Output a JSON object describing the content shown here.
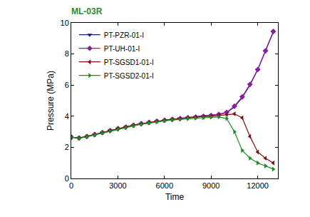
{
  "chart_data": {
    "type": "line",
    "title": "ML-03R",
    "x_label": "Time",
    "y_label": "Pressure (MPa)",
    "x": [
      0,
      500,
      1000,
      1500,
      2000,
      2500,
      3000,
      3500,
      4000,
      4500,
      5000,
      5500,
      6000,
      6500,
      7000,
      7500,
      8000,
      8500,
      9000,
      9500,
      10000,
      10500,
      11000,
      11500,
      12000,
      12500,
      13000
    ],
    "series": [
      {
        "name": "PT-PZR-01-I",
        "color": "#1c1c78",
        "marker": "triangle-down",
        "line_style": "solid",
        "values": [
          2.65,
          2.6,
          2.7,
          2.82,
          2.95,
          3.08,
          3.2,
          3.3,
          3.42,
          3.52,
          3.6,
          3.68,
          3.74,
          3.8,
          3.85,
          3.9,
          3.95,
          4.0,
          4.05,
          4.12,
          4.22,
          4.6,
          5.2,
          6.0,
          7.0,
          8.2,
          9.4
        ]
      },
      {
        "name": "PT-UH-01-I",
        "color": "#8e1aa6",
        "marker": "diamond",
        "line_style": "solid",
        "values": [
          2.65,
          2.6,
          2.7,
          2.82,
          2.95,
          3.08,
          3.2,
          3.3,
          3.42,
          3.52,
          3.6,
          3.68,
          3.74,
          3.8,
          3.85,
          3.9,
          3.95,
          4.0,
          4.05,
          4.12,
          4.25,
          4.65,
          5.25,
          6.05,
          7.0,
          8.2,
          9.45
        ]
      },
      {
        "name": "PT-SGSD1-01-I",
        "color": "#7a0f0f",
        "marker": "triangle-left",
        "line_style": "solid",
        "values": [
          2.65,
          2.6,
          2.7,
          2.82,
          2.95,
          3.08,
          3.2,
          3.3,
          3.42,
          3.52,
          3.6,
          3.68,
          3.74,
          3.8,
          3.85,
          3.9,
          3.93,
          3.97,
          4.0,
          4.05,
          4.1,
          4.15,
          3.9,
          2.7,
          1.7,
          1.3,
          1.0
        ]
      },
      {
        "name": "PT-SGSD2-01-I",
        "color": "#1e8c1e",
        "marker": "triangle-right",
        "line_style": "solid",
        "values": [
          2.65,
          2.58,
          2.68,
          2.8,
          2.93,
          3.05,
          3.17,
          3.27,
          3.38,
          3.48,
          3.56,
          3.64,
          3.7,
          3.76,
          3.8,
          3.85,
          3.88,
          3.9,
          3.93,
          3.95,
          3.85,
          3.0,
          1.8,
          1.3,
          1.0,
          0.8,
          0.6
        ]
      }
    ],
    "xlim": [
      0,
      13300
    ],
    "xticks": [
      0,
      3000,
      6000,
      9000,
      12000
    ],
    "ylim": [
      0,
      10
    ],
    "yticks": [
      0,
      2,
      4,
      6,
      8,
      10
    ],
    "grid": false,
    "legend": "upper left"
  }
}
